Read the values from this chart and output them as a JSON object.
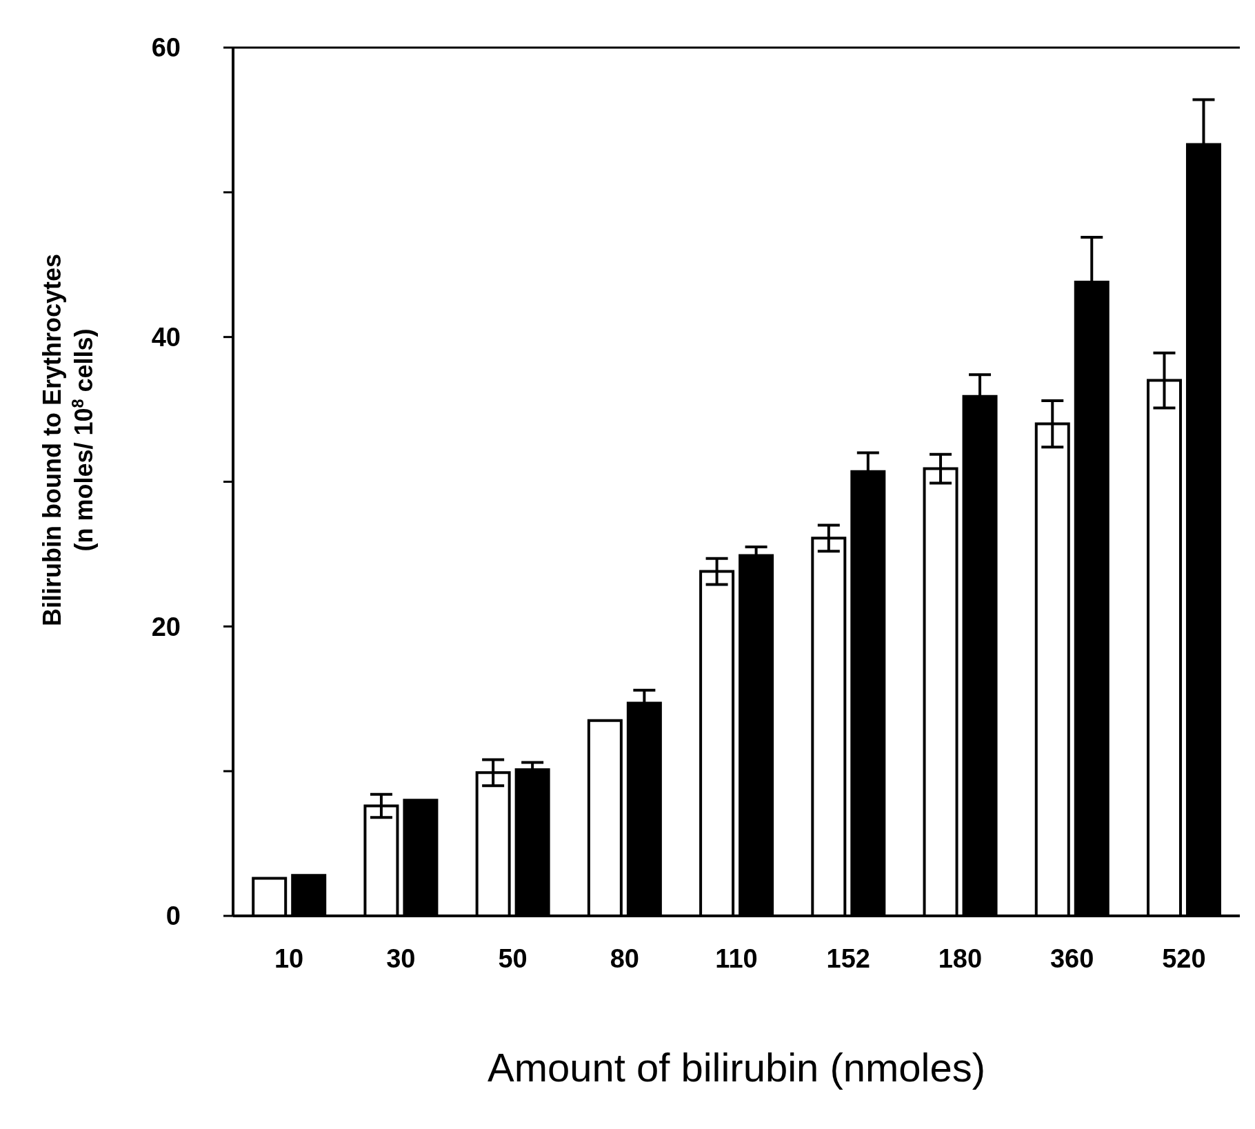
{
  "chart_data": {
    "type": "bar",
    "xlabel": "Amount of bilirubin (nmoles)",
    "ylabel": "Bilirubin bound to Erythrocytes\n(n moles/ 10$^{8}$ cells)",
    "categories": [
      "10",
      "30",
      "50",
      "80",
      "110",
      "152",
      "180",
      "360",
      "520"
    ],
    "series": [
      {
        "color": "#ffffff",
        "values": [
          2.6,
          7.6,
          9.9,
          13.5,
          23.8,
          26.1,
          30.9,
          34.0,
          37.0
        ],
        "errors": [
          null,
          0.8,
          0.9,
          null,
          0.9,
          0.9,
          1.0,
          1.6,
          1.9
        ]
      },
      {
        "color": "#000000",
        "values": [
          2.8,
          8.0,
          10.1,
          14.7,
          24.9,
          30.7,
          35.9,
          43.8,
          53.3
        ],
        "errors": [
          null,
          null,
          0.5,
          0.9,
          0.6,
          1.3,
          1.5,
          3.1,
          3.1
        ]
      }
    ],
    "ylim": [
      0,
      60
    ],
    "yticks": [
      0,
      {
        "value": 10,
        "label": null
      },
      20,
      {
        "value": 30,
        "label": null
      },
      40,
      {
        "value": 50,
        "label": null
      },
      60
    ],
    "grid": false,
    "legend": false
  }
}
